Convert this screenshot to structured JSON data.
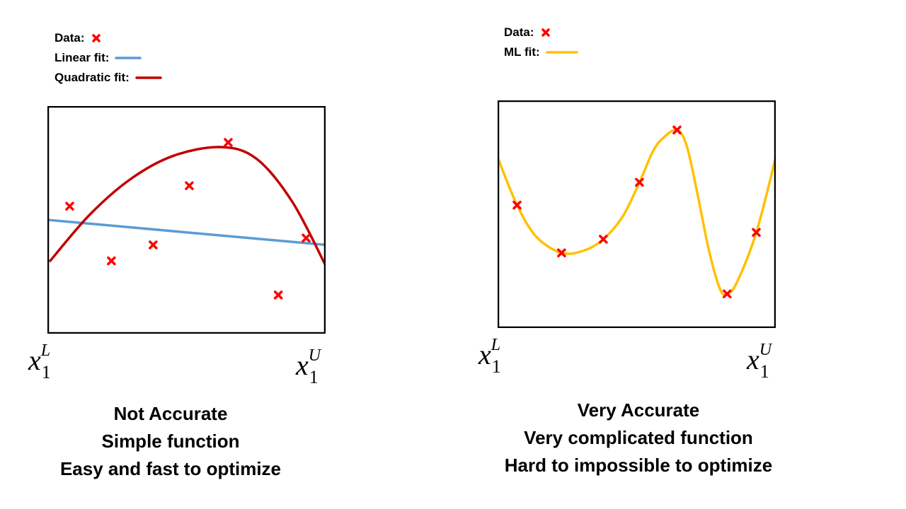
{
  "left_panel": {
    "legend": {
      "data_label": "Data:",
      "linear_label": "Linear fit:",
      "quadratic_label": "Quadratic fit:"
    },
    "axis": {
      "x_lower": {
        "base": "x",
        "sub": "1",
        "sup": "L"
      },
      "x_upper": {
        "base": "x",
        "sub": "1",
        "sup": "U"
      }
    },
    "caption": [
      "Not  Accurate",
      "Simple function",
      "Easy and fast to optimize"
    ]
  },
  "right_panel": {
    "legend": {
      "data_label": "Data:",
      "ml_label": "ML fit:"
    },
    "axis": {
      "x_lower": {
        "base": "x",
        "sub": "1",
        "sup": "L"
      },
      "x_upper": {
        "base": "x",
        "sub": "1",
        "sup": "U"
      }
    },
    "caption": [
      "Very  Accurate",
      "Very complicated function",
      "Hard to impossible to optimize"
    ]
  },
  "colors": {
    "data_marker": "#ff0000",
    "linear_fit": "#5b9bd5",
    "quadratic_fit": "#c00000",
    "ml_fit": "#ffc000",
    "frame": "#000000"
  },
  "chart_data": [
    {
      "type": "scatter",
      "xlim": [
        0,
        1
      ],
      "ylim": [
        0,
        1
      ],
      "grid": false,
      "legend_placement": "top-left",
      "points": [
        {
          "x": 0.08,
          "y": 0.56
        },
        {
          "x": 0.23,
          "y": 0.32
        },
        {
          "x": 0.38,
          "y": 0.39
        },
        {
          "x": 0.51,
          "y": 0.65
        },
        {
          "x": 0.65,
          "y": 0.84
        },
        {
          "x": 0.83,
          "y": 0.17
        },
        {
          "x": 0.93,
          "y": 0.42
        }
      ],
      "fits": [
        {
          "kind": "linear",
          "points": [
            [
              0.0,
              0.5
            ],
            [
              1.0,
              0.39
            ]
          ]
        },
        {
          "kind": "quadratic",
          "points": [
            [
              0.01,
              0.32
            ],
            [
              0.15,
              0.52
            ],
            [
              0.3,
              0.68
            ],
            [
              0.45,
              0.78
            ],
            [
              0.62,
              0.82
            ],
            [
              0.75,
              0.77
            ],
            [
              0.88,
              0.58
            ],
            [
              1.0,
              0.3
            ]
          ]
        }
      ]
    },
    {
      "type": "scatter",
      "xlim": [
        0,
        1
      ],
      "ylim": [
        0,
        1
      ],
      "grid": false,
      "legend_placement": "top-left",
      "points": [
        {
          "x": 0.07,
          "y": 0.54
        },
        {
          "x": 0.23,
          "y": 0.33
        },
        {
          "x": 0.38,
          "y": 0.39
        },
        {
          "x": 0.51,
          "y": 0.64
        },
        {
          "x": 0.645,
          "y": 0.87
        },
        {
          "x": 0.825,
          "y": 0.15
        },
        {
          "x": 0.93,
          "y": 0.42
        }
      ],
      "fits": [
        {
          "kind": "ml",
          "points": [
            [
              0.0,
              0.75
            ],
            [
              0.07,
              0.54
            ],
            [
              0.14,
              0.4
            ],
            [
              0.23,
              0.33
            ],
            [
              0.31,
              0.34
            ],
            [
              0.38,
              0.39
            ],
            [
              0.45,
              0.49
            ],
            [
              0.51,
              0.64
            ],
            [
              0.56,
              0.78
            ],
            [
              0.6,
              0.84
            ],
            [
              0.645,
              0.87
            ],
            [
              0.68,
              0.8
            ],
            [
              0.72,
              0.58
            ],
            [
              0.76,
              0.34
            ],
            [
              0.8,
              0.17
            ],
            [
              0.825,
              0.15
            ],
            [
              0.86,
              0.2
            ],
            [
              0.93,
              0.42
            ],
            [
              1.0,
              0.75
            ]
          ]
        }
      ]
    }
  ]
}
